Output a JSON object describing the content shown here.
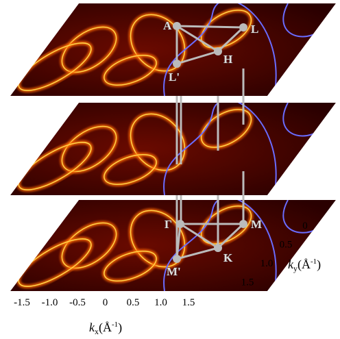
{
  "top_points": [
    "A",
    "L",
    "H",
    "L'"
  ],
  "bottom_points": [
    "Γ",
    "M",
    "K",
    "M'"
  ],
  "x_axis": {
    "symbol": "k",
    "sub": "x",
    "unit": "(Å",
    "sup": "-1",
    "close": ")",
    "ticks": [
      "-1.5",
      "-1.0",
      "-0.5",
      "0",
      "0.5",
      "1.0",
      "1.5"
    ]
  },
  "y_axis": {
    "symbol": "k",
    "sub": "y",
    "unit": "(Å",
    "sup": "-1",
    "close": ")",
    "ticks": [
      "0",
      "0.5",
      "1.0",
      "1.5"
    ]
  }
}
